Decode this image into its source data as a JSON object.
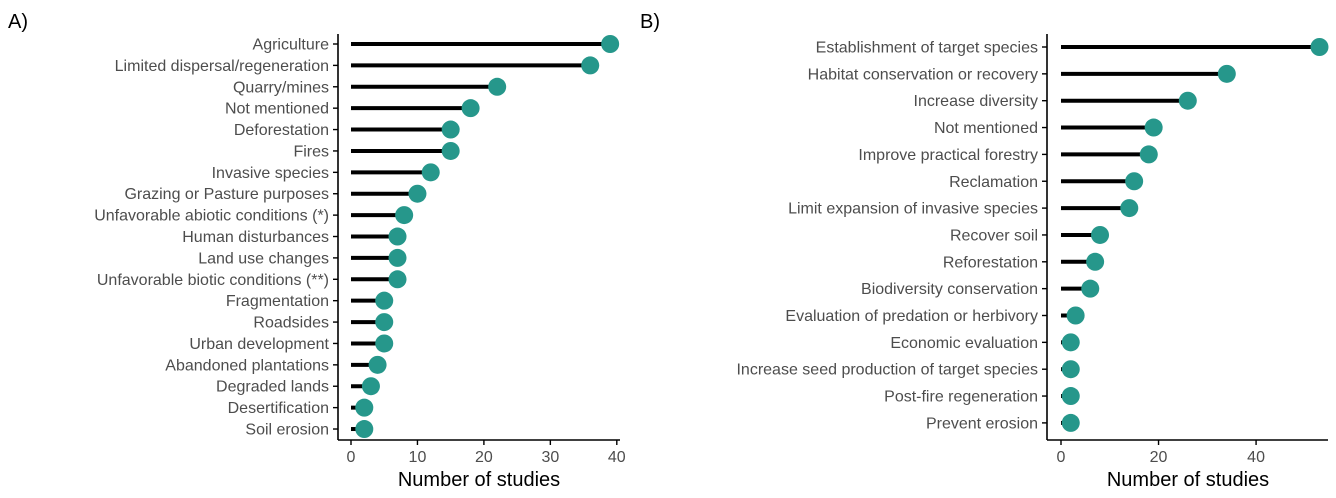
{
  "colors": {
    "point": "#26978b",
    "stem": "#000000"
  },
  "chart_data": [
    {
      "panel_label": "A)",
      "type": "lollipop",
      "xlabel": "Number of studies",
      "xlim": [
        0,
        40
      ],
      "xticks": [
        0,
        10,
        20,
        30,
        40
      ],
      "categories": [
        "Agriculture",
        "Limited dispersal/regeneration",
        "Quarry/mines",
        "Not mentioned",
        "Deforestation",
        "Fires",
        "Invasive species",
        "Grazing or Pasture purposes",
        "Unfavorable abiotic conditions (*)",
        "Human disturbances",
        "Land use changes",
        "Unfavorable biotic conditions (**)",
        "Fragmentation",
        "Roadsides",
        "Urban development",
        "Abandoned plantations",
        "Degraded lands",
        "Desertification",
        "Soil erosion"
      ],
      "values": [
        39,
        36,
        22,
        18,
        15,
        15,
        12,
        10,
        8,
        7,
        7,
        7,
        5,
        5,
        5,
        4,
        3,
        2,
        2
      ]
    },
    {
      "panel_label": "B)",
      "type": "lollipop",
      "xlabel": "Number of studies",
      "xlim": [
        0,
        53
      ],
      "xticks": [
        0,
        20,
        40
      ],
      "categories": [
        "Establishment of target species",
        "Habitat conservation or recovery",
        "Increase diversity",
        "Not mentioned",
        "Improve practical forestry",
        "Reclamation",
        "Limit expansion of invasive species",
        "Recover soil",
        "Reforestation",
        "Biodiversity conservation",
        "Evaluation of predation or herbivory",
        "Economic evaluation",
        "Increase seed production of target species",
        "Post-fire regeneration",
        "Prevent erosion"
      ],
      "values": [
        53,
        34,
        26,
        19,
        18,
        15,
        14,
        8,
        7,
        6,
        3,
        2,
        2,
        2,
        2
      ]
    }
  ]
}
